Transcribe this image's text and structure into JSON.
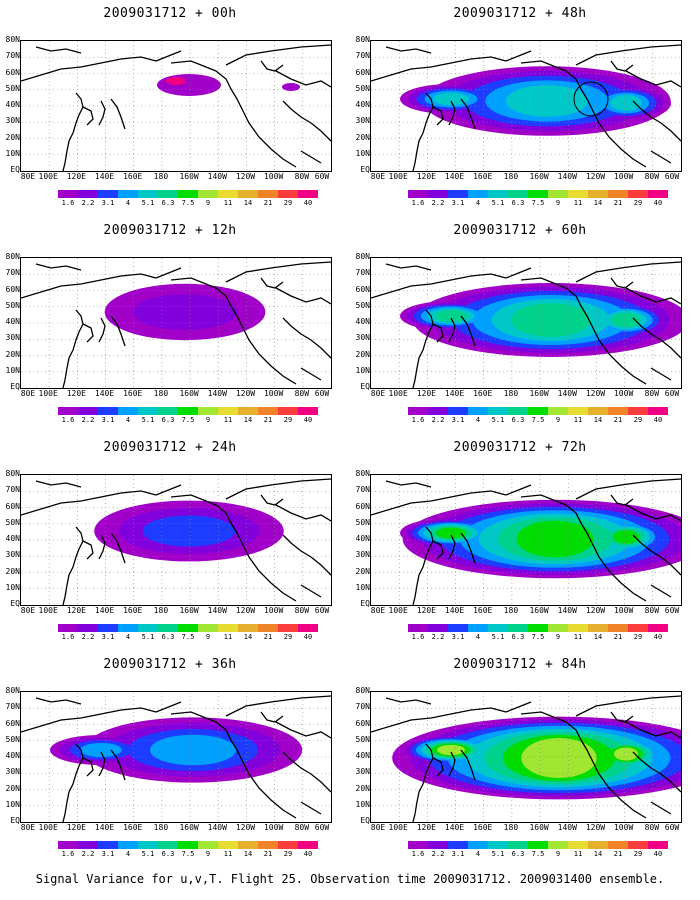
{
  "panels": [
    {
      "title": "2009031712 + 00h",
      "col": 0,
      "row": 0,
      "intensity": 0
    },
    {
      "title": "2009031712 + 12h",
      "col": 0,
      "row": 1,
      "intensity": 1
    },
    {
      "title": "2009031712 + 24h",
      "col": 0,
      "row": 2,
      "intensity": 2
    },
    {
      "title": "2009031712 + 36h",
      "col": 0,
      "row": 3,
      "intensity": 3
    },
    {
      "title": "2009031712 + 48h",
      "col": 1,
      "row": 0,
      "intensity": 4
    },
    {
      "title": "2009031712 + 60h",
      "col": 1,
      "row": 1,
      "intensity": 5
    },
    {
      "title": "2009031712 + 72h",
      "col": 1,
      "row": 2,
      "intensity": 6
    },
    {
      "title": "2009031712 + 84h",
      "col": 1,
      "row": 3,
      "intensity": 7
    }
  ],
  "lat_labels": [
    "80N",
    "70N",
    "60N",
    "50N",
    "40N",
    "30N",
    "20N",
    "10N",
    "EQ"
  ],
  "lon_labels": [
    "80E",
    "100E",
    "120E",
    "140E",
    "160E",
    "180",
    "160W",
    "140W",
    "120W",
    "100W",
    "80W",
    "60W"
  ],
  "colorbar": {
    "labels": [
      "1.6",
      "2.2",
      "3.1",
      "4",
      "5.1",
      "6.3",
      "7.5",
      "9",
      "11",
      "14",
      "21",
      "29",
      "40"
    ],
    "colors": [
      "#a000c8",
      "#8200dc",
      "#1e3cff",
      "#00a0ff",
      "#00c8c8",
      "#00d28c",
      "#00dc00",
      "#a0e632",
      "#e6dc32",
      "#e6af2d",
      "#f08228",
      "#fa3c3c",
      "#f00082"
    ]
  },
  "caption": "Signal Variance for u,v,T. Flight 25. Observation time 2009031712. 2009031400 ensemble."
}
